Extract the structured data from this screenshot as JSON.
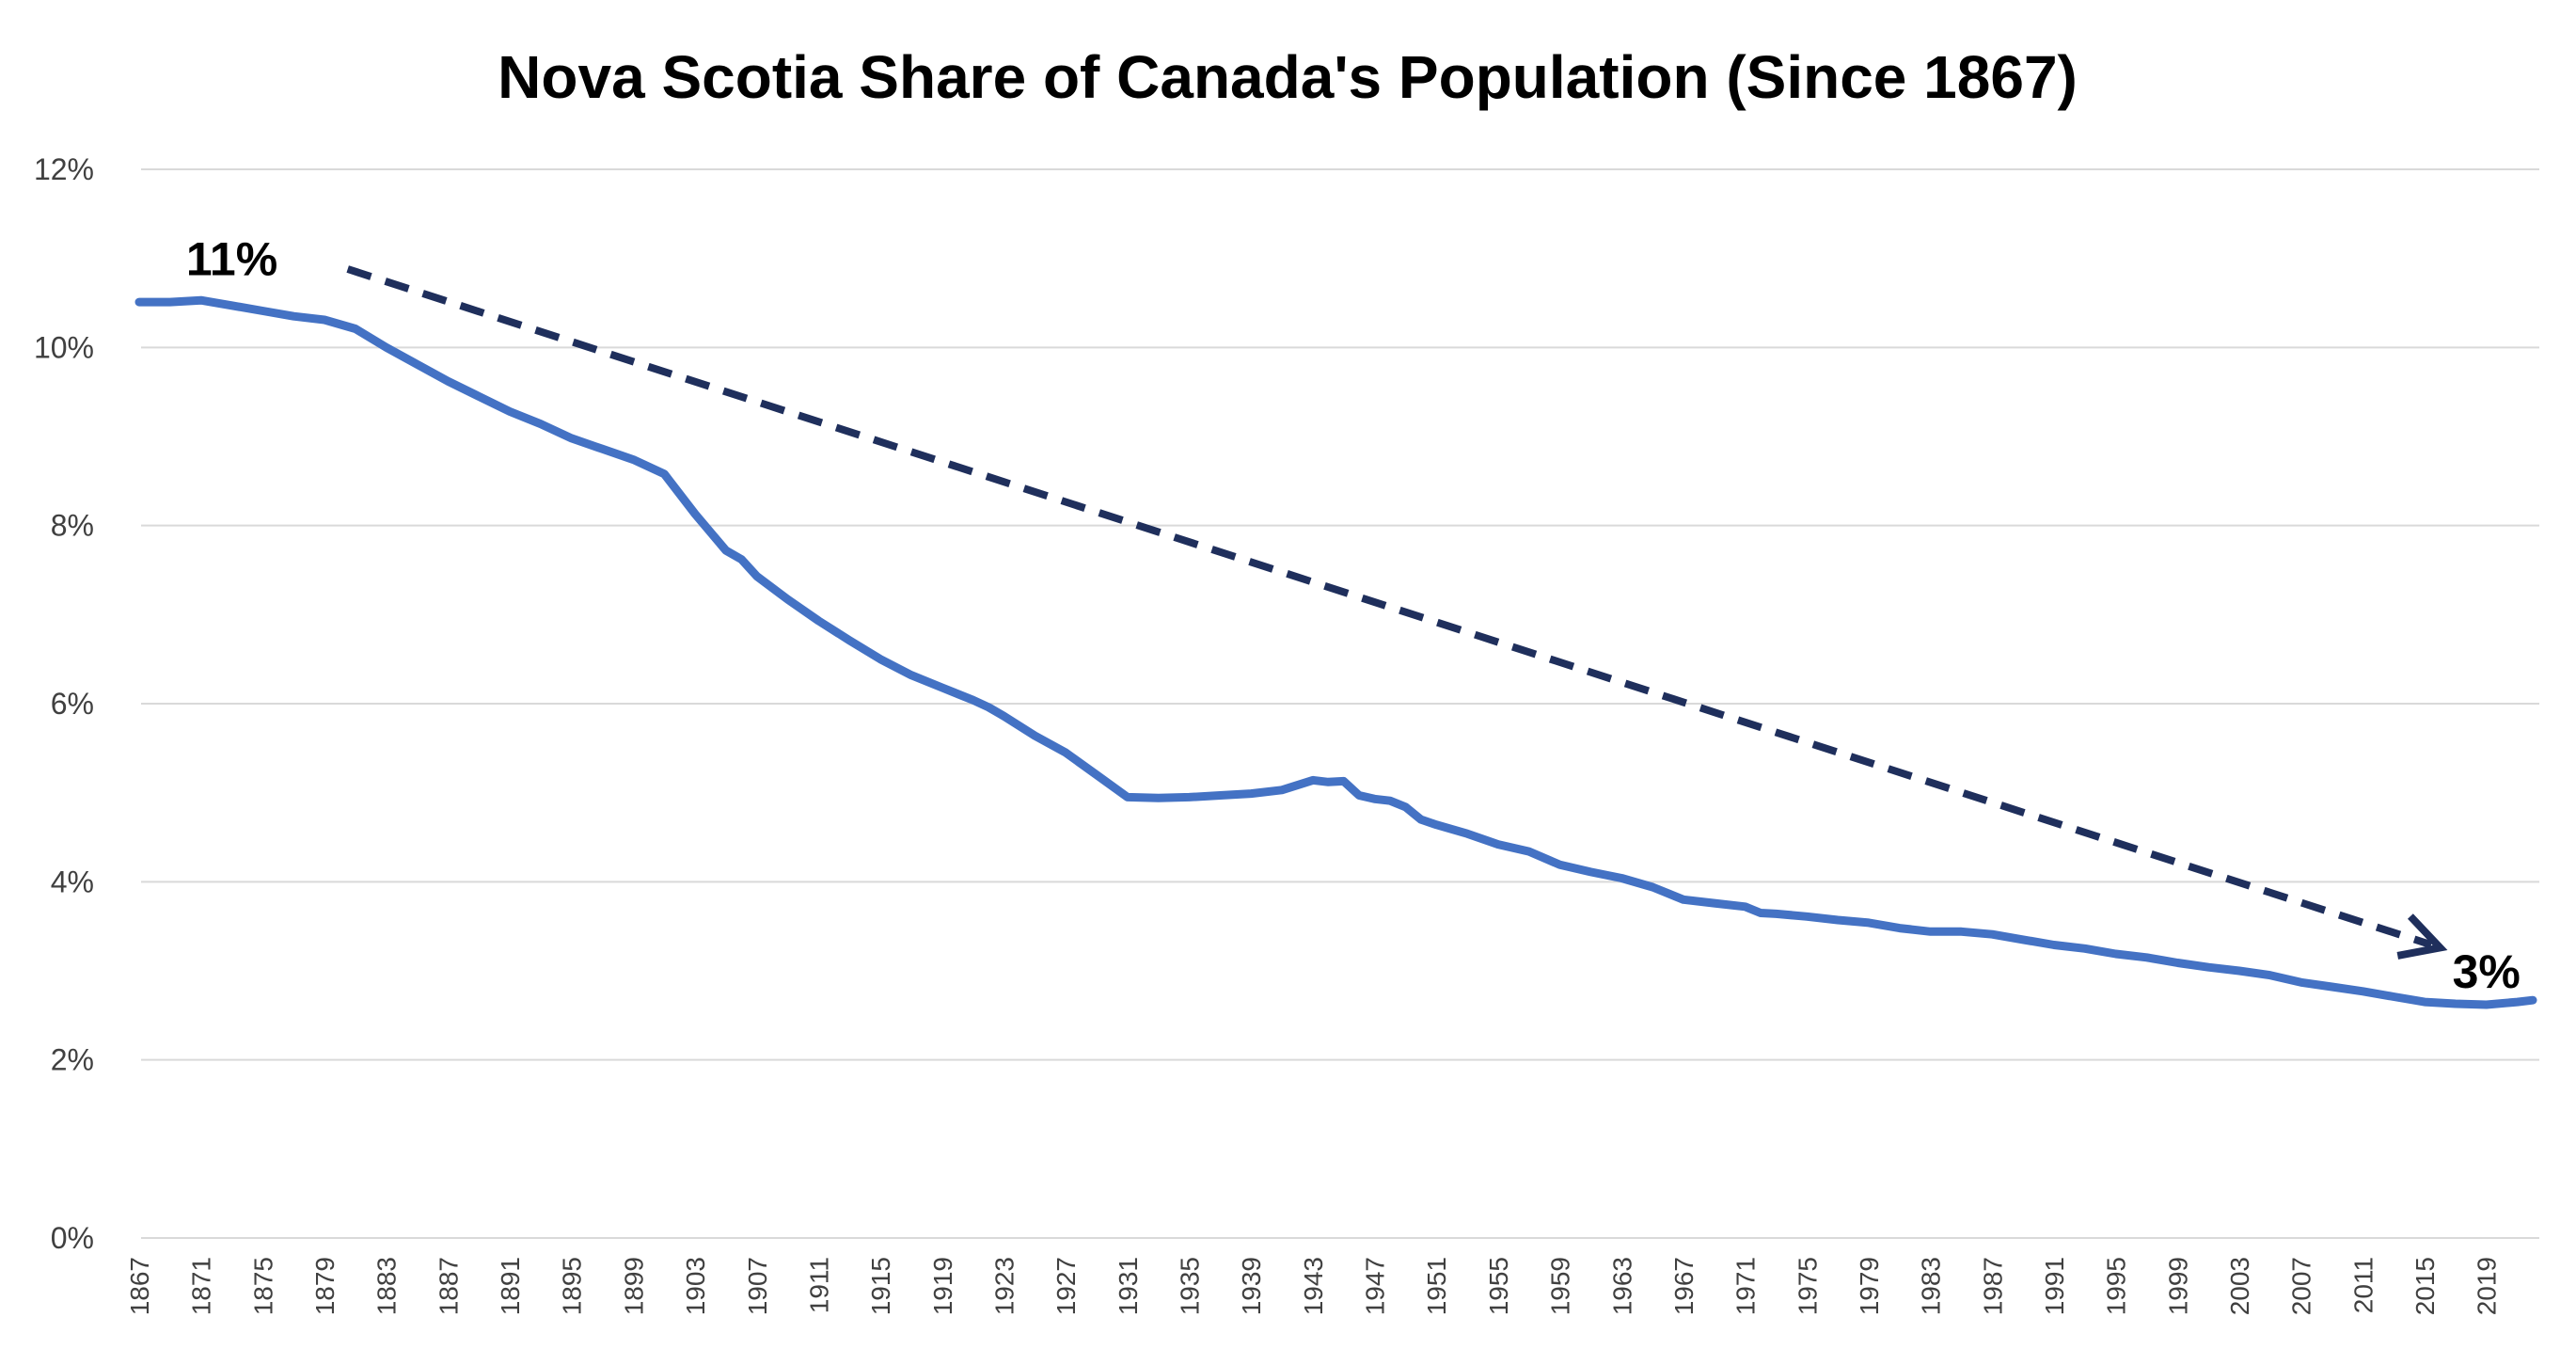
{
  "chart_data": {
    "type": "line",
    "title": "Nova Scotia Share of Canada's Population (Since 1867)",
    "xlabel": "",
    "ylabel": "",
    "ylim": [
      0,
      12
    ],
    "y_ticks": [
      0,
      2,
      4,
      6,
      8,
      10,
      12
    ],
    "y_tick_labels": [
      "0%",
      "2%",
      "4%",
      "6%",
      "8%",
      "10%",
      "12%"
    ],
    "x_range": [
      1867,
      2022
    ],
    "x_tick_labels": [
      "1867",
      "1871",
      "1875",
      "1879",
      "1883",
      "1887",
      "1891",
      "1895",
      "1899",
      "1903",
      "1907",
      "1911",
      "1915",
      "1919",
      "1923",
      "1927",
      "1931",
      "1935",
      "1939",
      "1943",
      "1947",
      "1951",
      "1955",
      "1959",
      "1963",
      "1967",
      "1971",
      "1975",
      "1979",
      "1983",
      "1987",
      "1991",
      "1995",
      "1999",
      "2003",
      "2007",
      "2011",
      "2015",
      "2019"
    ],
    "grid": true,
    "legend": "none",
    "series": [
      {
        "name": "Nova Scotia share of Canada's population",
        "color": "#4472c4",
        "points": [
          [
            1867,
            10.51
          ],
          [
            1869,
            10.51
          ],
          [
            1871,
            10.53
          ],
          [
            1873,
            10.47
          ],
          [
            1875,
            10.41
          ],
          [
            1877,
            10.35
          ],
          [
            1879,
            10.31
          ],
          [
            1881,
            10.21
          ],
          [
            1883,
            10.0
          ],
          [
            1885,
            9.81
          ],
          [
            1887,
            9.62
          ],
          [
            1889,
            9.45
          ],
          [
            1891,
            9.28
          ],
          [
            1893,
            9.14
          ],
          [
            1895,
            8.98
          ],
          [
            1897,
            8.86
          ],
          [
            1899,
            8.74
          ],
          [
            1901,
            8.58
          ],
          [
            1903,
            8.13
          ],
          [
            1905,
            7.72
          ],
          [
            1906,
            7.62
          ],
          [
            1907,
            7.43
          ],
          [
            1909,
            7.17
          ],
          [
            1911,
            6.93
          ],
          [
            1913,
            6.71
          ],
          [
            1915,
            6.5
          ],
          [
            1917,
            6.32
          ],
          [
            1919,
            6.18
          ],
          [
            1921,
            6.04
          ],
          [
            1922,
            5.96
          ],
          [
            1923,
            5.86
          ],
          [
            1925,
            5.64
          ],
          [
            1927,
            5.45
          ],
          [
            1929,
            5.2
          ],
          [
            1931,
            4.95
          ],
          [
            1933,
            4.94
          ],
          [
            1935,
            4.95
          ],
          [
            1937,
            4.97
          ],
          [
            1939,
            4.99
          ],
          [
            1941,
            5.03
          ],
          [
            1943,
            5.14
          ],
          [
            1944,
            5.12
          ],
          [
            1945,
            5.13
          ],
          [
            1946,
            4.97
          ],
          [
            1947,
            4.93
          ],
          [
            1948,
            4.91
          ],
          [
            1949,
            4.84
          ],
          [
            1950,
            4.7
          ],
          [
            1951,
            4.64
          ],
          [
            1953,
            4.54
          ],
          [
            1955,
            4.42
          ],
          [
            1957,
            4.34
          ],
          [
            1959,
            4.19
          ],
          [
            1961,
            4.11
          ],
          [
            1963,
            4.04
          ],
          [
            1965,
            3.94
          ],
          [
            1967,
            3.8
          ],
          [
            1969,
            3.76
          ],
          [
            1971,
            3.72
          ],
          [
            1972,
            3.65
          ],
          [
            1973,
            3.64
          ],
          [
            1975,
            3.61
          ],
          [
            1977,
            3.57
          ],
          [
            1979,
            3.54
          ],
          [
            1981,
            3.48
          ],
          [
            1983,
            3.44
          ],
          [
            1985,
            3.44
          ],
          [
            1987,
            3.41
          ],
          [
            1989,
            3.35
          ],
          [
            1991,
            3.29
          ],
          [
            1993,
            3.25
          ],
          [
            1995,
            3.19
          ],
          [
            1997,
            3.15
          ],
          [
            1999,
            3.09
          ],
          [
            2001,
            3.04
          ],
          [
            2003,
            3.0
          ],
          [
            2005,
            2.95
          ],
          [
            2007,
            2.87
          ],
          [
            2009,
            2.82
          ],
          [
            2011,
            2.77
          ],
          [
            2013,
            2.71
          ],
          [
            2015,
            2.65
          ],
          [
            2017,
            2.63
          ],
          [
            2019,
            2.62
          ],
          [
            2021,
            2.65
          ],
          [
            2022,
            2.67
          ]
        ]
      }
    ],
    "trend_arrow": {
      "from": [
        1880.5,
        10.88
      ],
      "to": [
        2016,
        3.26
      ]
    },
    "annotations": [
      {
        "text": "11%",
        "x": 1873,
        "y": 11.0
      },
      {
        "text": "3%",
        "x": 2019,
        "y": 3.0
      }
    ]
  }
}
